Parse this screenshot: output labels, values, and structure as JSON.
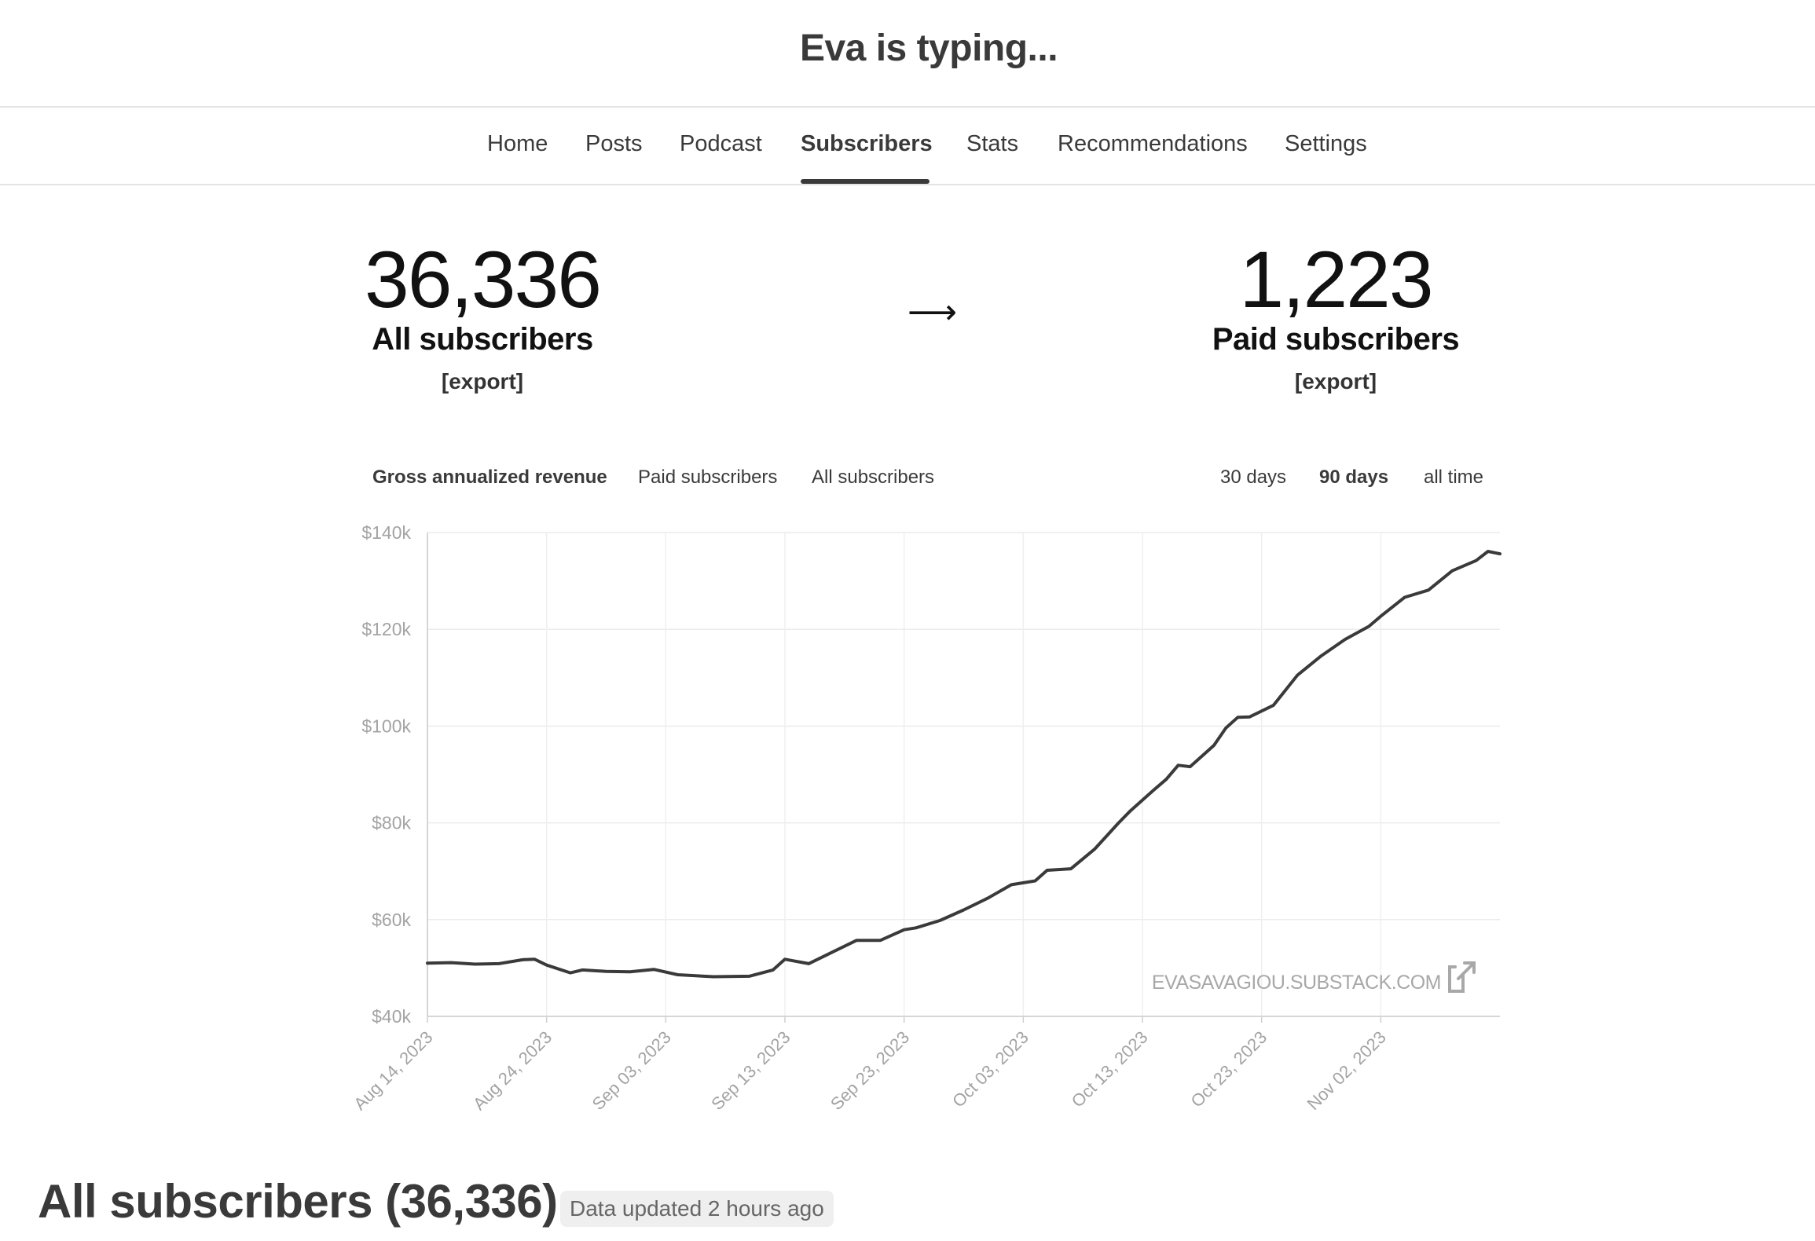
{
  "site": {
    "title": "Eva is typing..."
  },
  "nav": {
    "tabs": [
      "Home",
      "Posts",
      "Podcast",
      "Subscribers",
      "Stats",
      "Recommendations",
      "Settings"
    ],
    "active": "Subscribers"
  },
  "stats": {
    "all_count": "36,336",
    "all_label": "All subscribers",
    "paid_count": "1,223",
    "paid_label": "Paid subscribers",
    "export_label": "[export]",
    "arrow": "⟶"
  },
  "chart_controls": {
    "metrics": [
      "Gross annualized revenue",
      "Paid subscribers",
      "All subscribers"
    ],
    "active_metric": "Gross annualized revenue",
    "ranges": [
      "30 days",
      "90 days",
      "all time"
    ],
    "active_range": "90 days"
  },
  "chart_data": {
    "type": "line",
    "title": "",
    "xlabel": "",
    "ylabel": "",
    "x_start": "2023-08-14",
    "x_end": "2023-11-12",
    "x_ticks": [
      "Aug 14, 2023",
      "Aug 24, 2023",
      "Sep 03, 2023",
      "Sep 13, 2023",
      "Sep 23, 2023",
      "Oct 03, 2023",
      "Oct 13, 2023",
      "Oct 23, 2023",
      "Nov 02, 2023"
    ],
    "y_ticks": [
      "$40k",
      "$60k",
      "$80k",
      "$100k",
      "$120k",
      "$140k"
    ],
    "ylim": [
      40,
      140
    ],
    "y_unit": "k USD",
    "grid": true,
    "watermark": "EVASAVAGIOU.SUBSTACK.COM",
    "series": [
      {
        "color": "#3a3a3a",
        "points": [
          [
            "2023-08-14",
            51.0
          ],
          [
            "2023-08-16",
            51.1
          ],
          [
            "2023-08-18",
            50.8
          ],
          [
            "2023-08-20",
            50.9
          ],
          [
            "2023-08-22",
            51.7
          ],
          [
            "2023-08-23",
            51.8
          ],
          [
            "2023-08-24",
            50.6
          ],
          [
            "2023-08-26",
            49.0
          ],
          [
            "2023-08-27",
            49.6
          ],
          [
            "2023-08-29",
            49.3
          ],
          [
            "2023-08-31",
            49.2
          ],
          [
            "2023-09-02",
            49.7
          ],
          [
            "2023-09-04",
            48.6
          ],
          [
            "2023-09-07",
            48.2
          ],
          [
            "2023-09-10",
            48.3
          ],
          [
            "2023-09-12",
            49.6
          ],
          [
            "2023-09-13",
            51.8
          ],
          [
            "2023-09-15",
            50.9
          ],
          [
            "2023-09-17",
            53.3
          ],
          [
            "2023-09-19",
            55.7
          ],
          [
            "2023-09-21",
            55.7
          ],
          [
            "2023-09-23",
            57.9
          ],
          [
            "2023-09-24",
            58.3
          ],
          [
            "2023-09-26",
            59.8
          ],
          [
            "2023-09-28",
            62.0
          ],
          [
            "2023-09-30",
            64.4
          ],
          [
            "2023-10-02",
            67.2
          ],
          [
            "2023-10-04",
            68.0
          ],
          [
            "2023-10-05",
            70.2
          ],
          [
            "2023-10-07",
            70.5
          ],
          [
            "2023-10-09",
            74.6
          ],
          [
            "2023-10-11",
            80.0
          ],
          [
            "2023-10-12",
            82.5
          ],
          [
            "2023-10-14",
            86.9
          ],
          [
            "2023-10-15",
            89.0
          ],
          [
            "2023-10-16",
            91.9
          ],
          [
            "2023-10-17",
            91.6
          ],
          [
            "2023-10-19",
            96.0
          ],
          [
            "2023-10-20",
            99.6
          ],
          [
            "2023-10-21",
            101.8
          ],
          [
            "2023-10-22",
            101.9
          ],
          [
            "2023-10-24",
            104.3
          ],
          [
            "2023-10-26",
            110.5
          ],
          [
            "2023-10-28",
            114.5
          ],
          [
            "2023-10-30",
            117.9
          ],
          [
            "2023-11-01",
            120.6
          ],
          [
            "2023-11-02",
            122.7
          ],
          [
            "2023-11-04",
            126.6
          ],
          [
            "2023-11-06",
            128.1
          ],
          [
            "2023-11-08",
            132.1
          ],
          [
            "2023-11-10",
            134.2
          ],
          [
            "2023-11-11",
            136.1
          ],
          [
            "2023-11-12",
            135.6
          ]
        ]
      }
    ]
  },
  "subscribers_section": {
    "title": "All subscribers (36,336)",
    "updated": "Data updated 2 hours ago"
  }
}
